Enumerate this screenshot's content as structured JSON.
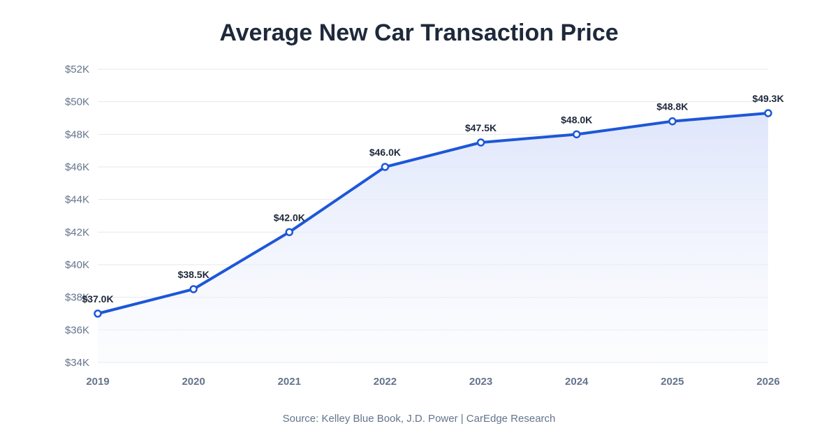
{
  "chart_data": {
    "type": "area",
    "title": "Average New Car Transaction Price",
    "source": "Source: Kelley Blue Book, J.D. Power | CarEdge Research",
    "categories": [
      "2019",
      "2020",
      "2021",
      "2022",
      "2023",
      "2024",
      "2025",
      "2026"
    ],
    "values": [
      37.0,
      38.5,
      42.0,
      46.0,
      47.5,
      48.0,
      48.8,
      49.3
    ],
    "data_labels": [
      "$37.0K",
      "$38.5K",
      "$42.0K",
      "$46.0K",
      "$47.5K",
      "$48.0K",
      "$48.8K",
      "$49.3K"
    ],
    "unit": "thousand USD",
    "ylim": [
      34,
      52
    ],
    "yticks": [
      34,
      36,
      38,
      40,
      42,
      44,
      46,
      48,
      50,
      52
    ],
    "ytick_labels": [
      "$34K",
      "$36K",
      "$38K",
      "$40K",
      "$42K",
      "$44K",
      "$46K",
      "$48K",
      "$50K",
      "$52K"
    ],
    "grid": true,
    "legend": "none",
    "colors": {
      "line": "#1d57d8",
      "fill": "#dfe6fb",
      "grid": "#e5e7eb",
      "axis_text": "#64748b",
      "label_text": "#1e293b"
    }
  }
}
